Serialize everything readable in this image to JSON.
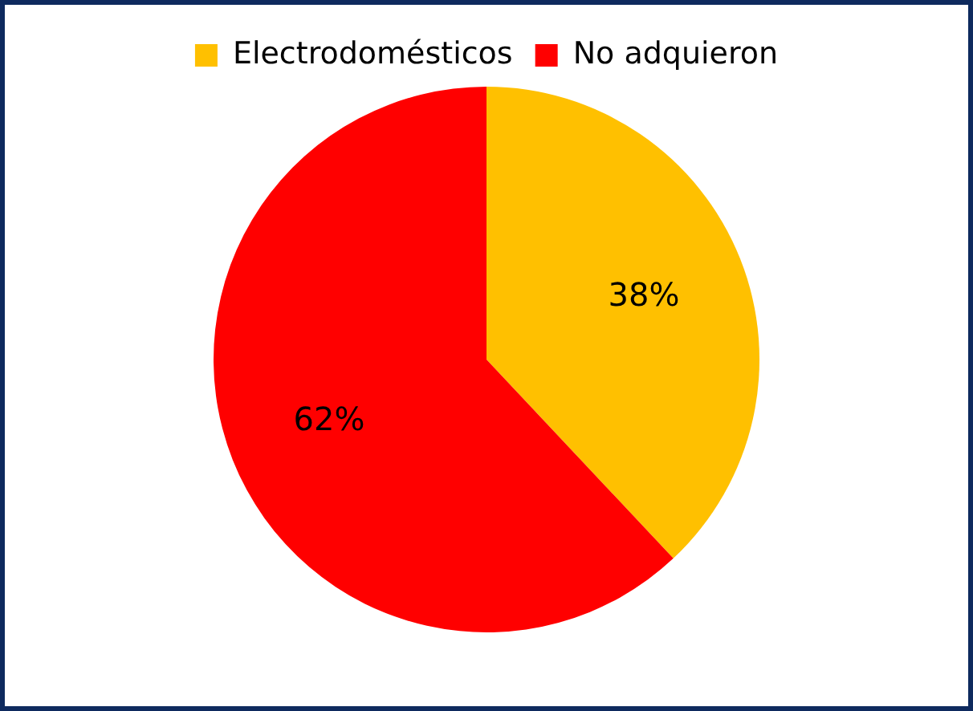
{
  "chart_data": {
    "type": "pie",
    "categories": [
      "Electrodomésticos",
      "No adquieron"
    ],
    "values": [
      38,
      62
    ],
    "colors": [
      "#ffc000",
      "#ff0000"
    ],
    "value_labels": [
      "38%",
      "62%"
    ],
    "legend": "top"
  }
}
